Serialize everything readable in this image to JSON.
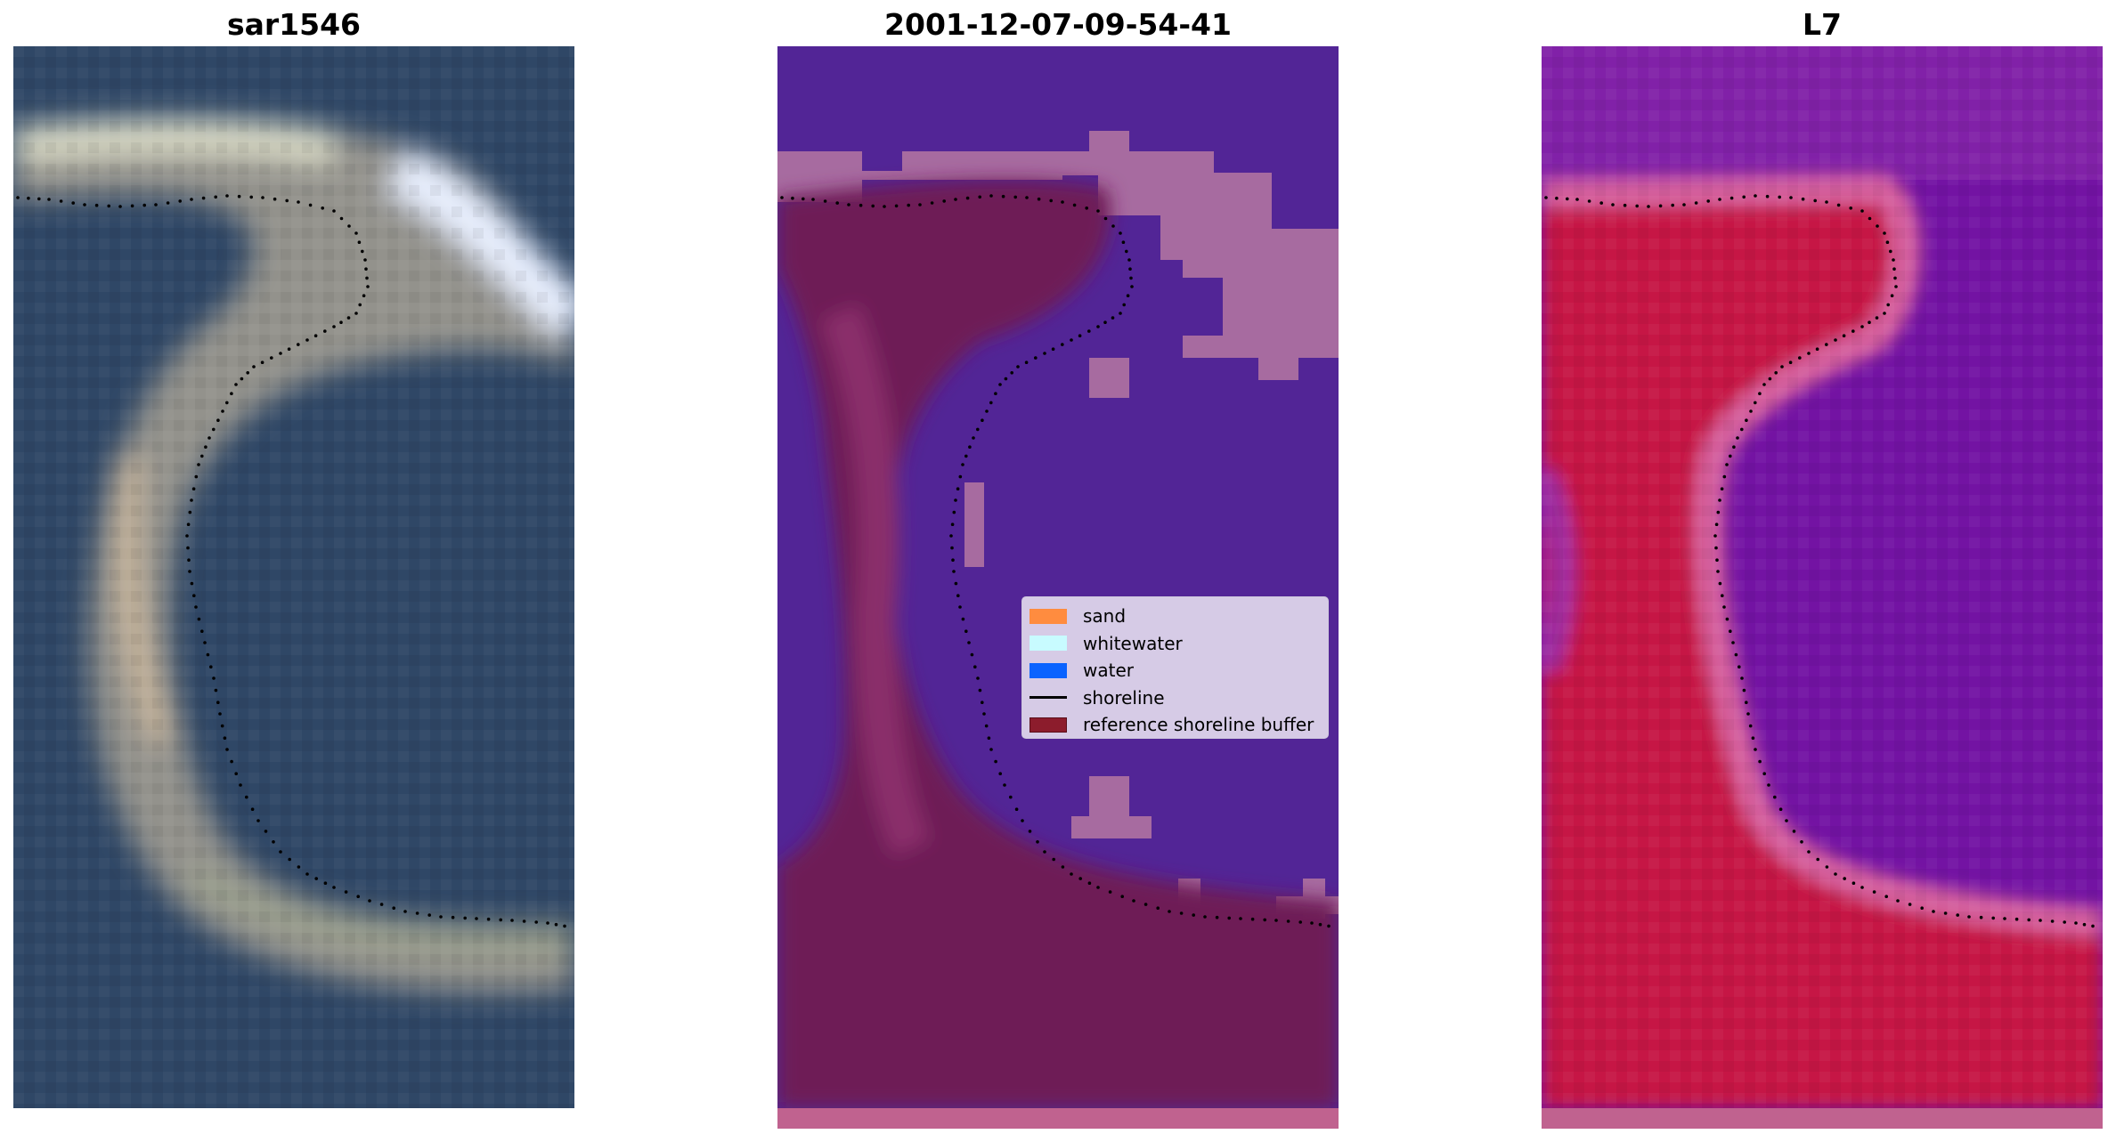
{
  "panels": [
    {
      "title": "sar1546"
    },
    {
      "title": "2001-12-07-09-54-41"
    },
    {
      "title": "L7"
    }
  ],
  "legend": {
    "items": [
      {
        "label": "sand",
        "color": "#ff8c3f",
        "kind": "patch"
      },
      {
        "label": "whitewater",
        "color": "#c8fbff",
        "kind": "patch"
      },
      {
        "label": "water",
        "color": "#0a63ff",
        "kind": "patch"
      },
      {
        "label": "shoreline",
        "color": "#000000",
        "kind": "line"
      },
      {
        "label": "reference shoreline buffer",
        "color": "#8c1c2c",
        "kind": "patch"
      }
    ]
  },
  "colors": {
    "rgb_water": "#2f4766",
    "rgb_sand": "#b4a490",
    "class_water": "#522596",
    "class_whitewater": "#a76ba0",
    "class_buffer": "#6e1d56",
    "index_low": "#7313a3",
    "index_high": "#c61444"
  }
}
